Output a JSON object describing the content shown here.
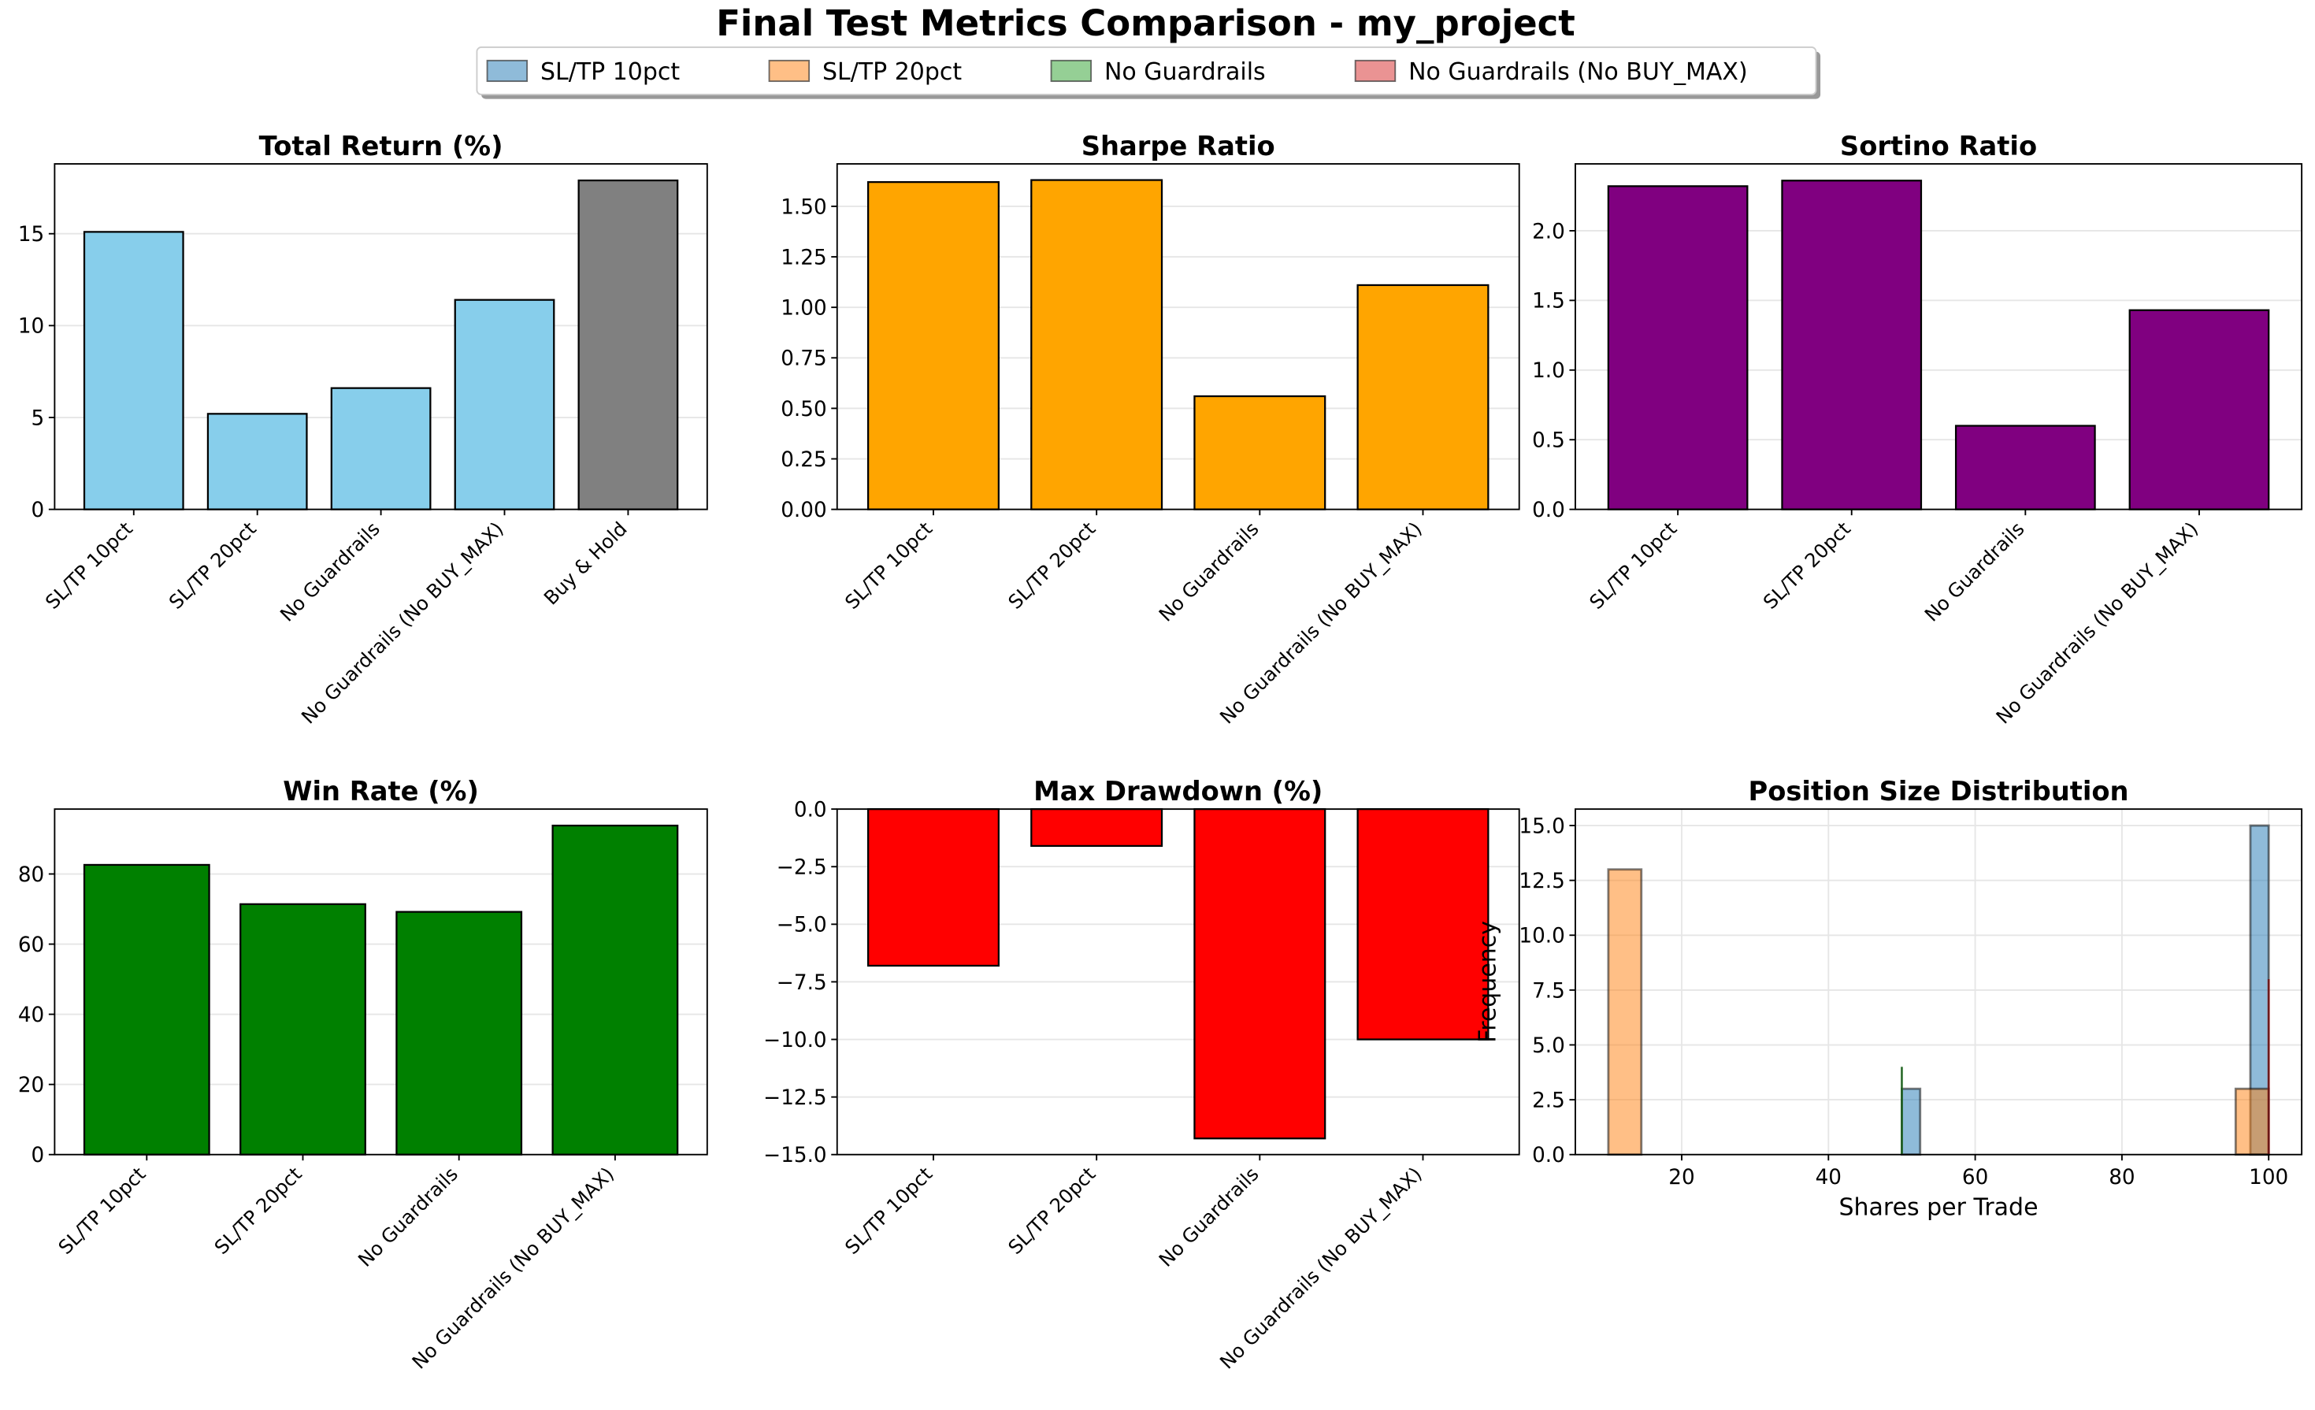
{
  "figure_title": "Final Test Metrics Comparison - my_project",
  "legend": {
    "placement": "top-center",
    "items": [
      {
        "label": "SL/TP 10pct",
        "color": "#1f77b4"
      },
      {
        "label": "SL/TP 20pct",
        "color": "#ff7f0e"
      },
      {
        "label": "No Guardrails",
        "color": "#2ca02c"
      },
      {
        "label": "No Guardrails (No BUY_MAX)",
        "color": "#d62728"
      }
    ]
  },
  "chart_data": [
    {
      "type": "bar",
      "title": "Total Return (%)",
      "categories": [
        "SL/TP 10pct",
        "SL/TP 20pct",
        "No Guardrails",
        "No Guardrails (No BUY_MAX)",
        "Buy & Hold"
      ],
      "values": [
        15.1,
        5.2,
        6.6,
        11.4,
        17.9
      ],
      "colors": [
        "#87ceeb",
        "#87ceeb",
        "#87ceeb",
        "#87ceeb",
        "#808080"
      ],
      "ylim": [
        0,
        18.8
      ],
      "yticks": [
        0,
        5,
        10,
        15
      ],
      "ytick_labels": [
        "0",
        "5",
        "10",
        "15"
      ],
      "grid": "y"
    },
    {
      "type": "bar",
      "title": "Sharpe Ratio",
      "categories": [
        "SL/TP 10pct",
        "SL/TP 20pct",
        "No Guardrails",
        "No Guardrails (No BUY_MAX)"
      ],
      "values": [
        1.62,
        1.63,
        0.56,
        1.11
      ],
      "colors": [
        "#ffa500",
        "#ffa500",
        "#ffa500",
        "#ffa500"
      ],
      "ylim": [
        0,
        1.71
      ],
      "yticks": [
        0,
        0.25,
        0.5,
        0.75,
        1.0,
        1.25,
        1.5
      ],
      "ytick_labels": [
        "0.00",
        "0.25",
        "0.50",
        "0.75",
        "1.00",
        "1.25",
        "1.50"
      ],
      "grid": "y"
    },
    {
      "type": "bar",
      "title": "Sortino Ratio",
      "categories": [
        "SL/TP 10pct",
        "SL/TP 20pct",
        "No Guardrails",
        "No Guardrails (No BUY_MAX)"
      ],
      "values": [
        2.32,
        2.36,
        0.6,
        1.43
      ],
      "colors": [
        "#800080",
        "#800080",
        "#800080",
        "#800080"
      ],
      "ylim": [
        0,
        2.48
      ],
      "yticks": [
        0,
        0.5,
        1.0,
        1.5,
        2.0
      ],
      "ytick_labels": [
        "0.0",
        "0.5",
        "1.0",
        "1.5",
        "2.0"
      ],
      "grid": "y"
    },
    {
      "type": "bar",
      "title": "Win Rate (%)",
      "categories": [
        "SL/TP 10pct",
        "SL/TP 20pct",
        "No Guardrails",
        "No Guardrails (No BUY_MAX)"
      ],
      "values": [
        82.6,
        71.4,
        69.2,
        93.8
      ],
      "colors": [
        "#008000",
        "#008000",
        "#008000",
        "#008000"
      ],
      "ylim": [
        0,
        98.5
      ],
      "yticks": [
        0,
        20,
        40,
        60,
        80
      ],
      "ytick_labels": [
        "0",
        "20",
        "40",
        "60",
        "80"
      ],
      "grid": "y"
    },
    {
      "type": "bar",
      "title": "Max Drawdown (%)",
      "categories": [
        "SL/TP 10pct",
        "SL/TP 20pct",
        "No Guardrails",
        "No Guardrails (No BUY_MAX)"
      ],
      "values": [
        -6.8,
        -1.6,
        -14.3,
        -10.0
      ],
      "colors": [
        "#ff0000",
        "#ff0000",
        "#ff0000",
        "#ff0000"
      ],
      "ylim": [
        -15,
        0
      ],
      "yticks": [
        -15,
        -12.5,
        -10,
        -7.5,
        -5,
        -2.5,
        0
      ],
      "ytick_labels": [
        "−15.0",
        "−12.5",
        "−10.0",
        "−7.5",
        "−5.0",
        "−2.5",
        "0.0"
      ],
      "grid": "y"
    },
    {
      "type": "histogram",
      "title": "Position Size Distribution",
      "xlabel": "Shares per Trade",
      "ylabel": "Frequency",
      "xlim": [
        5.5,
        104.5
      ],
      "ylim": [
        0,
        15.75
      ],
      "xticks": [
        20,
        40,
        60,
        80,
        100
      ],
      "xtick_labels": [
        "20",
        "40",
        "60",
        "80",
        "100"
      ],
      "yticks": [
        0,
        2.5,
        5,
        7.5,
        10,
        12.5,
        15
      ],
      "ytick_labels": [
        "0.0",
        "2.5",
        "5.0",
        "7.5",
        "10.0",
        "12.5",
        "15.0"
      ],
      "grid": "both",
      "series": [
        {
          "name": "SL/TP 10pct",
          "color": "#1f77b4",
          "bins": [
            {
              "x0": 50,
              "x1": 52.5,
              "count": 3
            },
            {
              "x0": 97.5,
              "x1": 100,
              "count": 15
            }
          ]
        },
        {
          "name": "SL/TP 20pct",
          "color": "#ff7f0e",
          "bins": [
            {
              "x0": 10,
              "x1": 14.5,
              "count": 13
            },
            {
              "x0": 95.5,
              "x1": 100,
              "count": 3
            }
          ]
        },
        {
          "name": "No Guardrails",
          "color": "#2ca02c",
          "bins": [
            {
              "x0": 50,
              "x1": 50,
              "count": 4
            }
          ]
        },
        {
          "name": "No Guardrails (No BUY_MAX)",
          "color": "#d62728",
          "bins": [
            {
              "x0": 100,
              "x1": 100,
              "count": 8
            }
          ]
        }
      ]
    }
  ]
}
